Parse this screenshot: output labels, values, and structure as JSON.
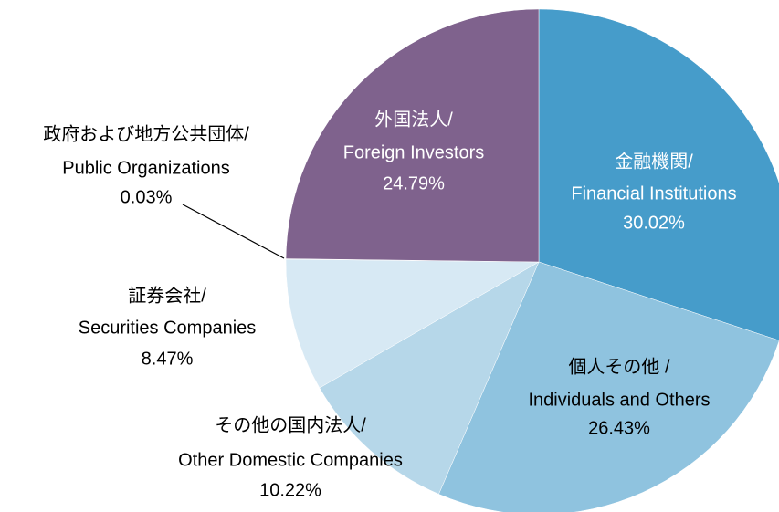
{
  "chart_data": {
    "type": "pie",
    "categories": [
      [
        "金融機関/",
        "Financial Institutions"
      ],
      [
        "個人その他 /",
        "Individuals and Others"
      ],
      [
        "その他の国内法人/",
        "Other Domestic Companies"
      ],
      [
        "証券会社/",
        "Securities Companies"
      ],
      [
        "政府および地方公共団体/",
        "Public Organizations"
      ],
      [
        "外国法人/",
        "Foreign Investors"
      ]
    ],
    "values": [
      30.02,
      26.43,
      10.22,
      8.47,
      0.03,
      24.79
    ],
    "value_labels": [
      "30.02%",
      "26.43%",
      "10.22%",
      "8.47%",
      "0.03%",
      "24.79%"
    ],
    "colors": [
      "#469cca",
      "#8fc3df",
      "#b6d7e9",
      "#d7e9f4",
      "#c9c9c9",
      "#7f628d"
    ]
  }
}
